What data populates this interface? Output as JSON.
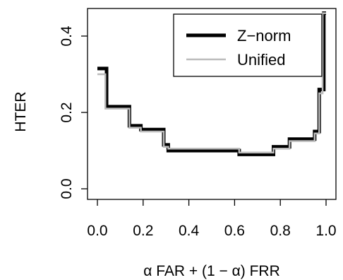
{
  "chart_data": {
    "type": "line",
    "step": true,
    "xlabel": "α FAR + (1 − α) FRR",
    "ylabel": "HTER",
    "xlim": [
      0,
      1
    ],
    "ylim": [
      0,
      0.4
    ],
    "x_ticks": [
      0.0,
      0.2,
      0.4,
      0.6,
      0.8,
      1.0
    ],
    "x_tick_labels": [
      "0.0",
      "0.2",
      "0.4",
      "0.6",
      "0.8",
      "1.0"
    ],
    "y_ticks": [
      0.0,
      0.2,
      0.4
    ],
    "y_tick_labels": [
      "0.0",
      "0.2",
      "0.4"
    ],
    "legend_position": "top-right",
    "series": [
      {
        "name": "Z−norm",
        "color": "#000000",
        "x": [
          0.0,
          0.04,
          0.04,
          0.05,
          0.05,
          0.14,
          0.14,
          0.19,
          0.19,
          0.29,
          0.29,
          0.31,
          0.31,
          0.62,
          0.62,
          0.77,
          0.77,
          0.84,
          0.84,
          0.95,
          0.95,
          0.97,
          0.97,
          0.99,
          0.99,
          1.0
        ],
        "y": [
          0.315,
          0.315,
          0.215,
          0.215,
          0.215,
          0.215,
          0.165,
          0.165,
          0.155,
          0.155,
          0.115,
          0.115,
          0.1,
          0.1,
          0.09,
          0.09,
          0.11,
          0.11,
          0.13,
          0.13,
          0.15,
          0.15,
          0.26,
          0.26,
          0.46,
          0.46
        ]
      },
      {
        "name": "Unified",
        "color": "#bbbbbb",
        "x": [
          0.0,
          0.035,
          0.035,
          0.05,
          0.05,
          0.14,
          0.14,
          0.19,
          0.19,
          0.29,
          0.29,
          0.31,
          0.31,
          0.62,
          0.62,
          0.77,
          0.77,
          0.84,
          0.84,
          0.95,
          0.95,
          0.97,
          0.97,
          0.985,
          0.985,
          1.0
        ],
        "y": [
          0.3,
          0.3,
          0.21,
          0.21,
          0.21,
          0.21,
          0.16,
          0.16,
          0.15,
          0.15,
          0.11,
          0.11,
          0.105,
          0.105,
          0.095,
          0.095,
          0.105,
          0.105,
          0.125,
          0.125,
          0.145,
          0.145,
          0.25,
          0.25,
          0.46,
          0.46
        ]
      }
    ]
  }
}
